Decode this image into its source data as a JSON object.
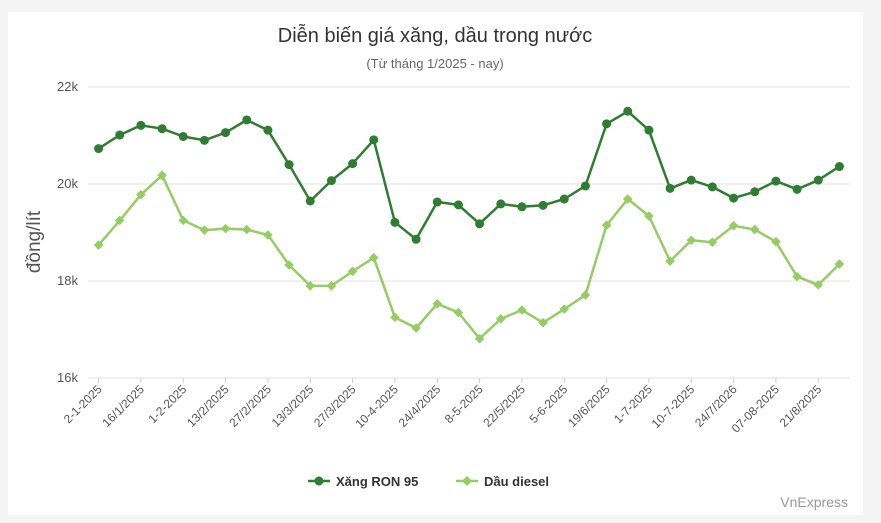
{
  "chart_data": {
    "type": "line",
    "title": "Diễn biến giá xăng, dầu trong nước",
    "subtitle": "(Từ tháng 1/2025 - nay)",
    "ylabel": "đồng/lít",
    "xlabel": "",
    "ylim": [
      16000,
      22000
    ],
    "yticks": [
      16000,
      18000,
      20000,
      22000
    ],
    "ytick_labels": [
      "16k",
      "18k",
      "20k",
      "22k"
    ],
    "grid": true,
    "legend_position": "bottom",
    "x_tick_labels": [
      "2-1-2025",
      "16/1/2025",
      "1-2-2025",
      "13/2/2025",
      "27/2/2025",
      "13/3/2025",
      "27/3/2025",
      "10-4-2025",
      "24/4/2025",
      "8-5-2025",
      "22/5/2025",
      "5-6-2025",
      "19/6/2025",
      "1-7-2025",
      "10-7-2025",
      "24/7/2026",
      "07-08-2025",
      "21/8/2025"
    ],
    "x_tick_every": 2,
    "point_count": 36,
    "series": [
      {
        "name": "Xăng RON 95",
        "color": "#2e7d32",
        "marker": "circle",
        "values": [
          20730,
          21010,
          21210,
          21140,
          20980,
          20900,
          21060,
          21320,
          21110,
          20400,
          19650,
          20070,
          20420,
          20910,
          19210,
          18860,
          19630,
          19570,
          19180,
          19590,
          19530,
          19560,
          19690,
          19960,
          21240,
          21500,
          21110,
          19910,
          20080,
          19940,
          19710,
          19840,
          20060,
          19890,
          20080,
          20360
        ]
      },
      {
        "name": "Dầu diesel",
        "color": "#96cc64",
        "marker": "diamond",
        "values": [
          18740,
          19250,
          19780,
          20180,
          19250,
          19050,
          19080,
          19060,
          18950,
          18330,
          17900,
          17900,
          18200,
          18480,
          17250,
          17030,
          17530,
          17350,
          16810,
          17220,
          17400,
          17140,
          17420,
          17710,
          19150,
          19690,
          19340,
          18410,
          18840,
          18800,
          19140,
          19060,
          18810,
          18090,
          17920,
          18350
        ]
      }
    ]
  },
  "credit": "VnExpress"
}
